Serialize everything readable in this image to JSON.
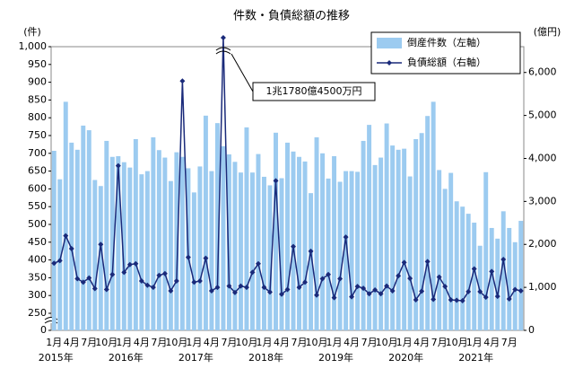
{
  "chart_data": {
    "type": "bar_line",
    "title": "件数・負債総額の推移",
    "ylabel": "(件)",
    "y2label": "(億円)",
    "annotation": "1兆1780億4500万円",
    "axis_break": true,
    "categories": [
      "1月",
      null,
      null,
      "4月",
      null,
      null,
      "7月",
      null,
      null,
      "10月",
      null,
      null,
      "1月",
      null,
      null,
      "4月",
      null,
      null,
      "7月",
      null,
      null,
      "10月",
      null,
      null,
      "1月",
      null,
      null,
      "4月",
      null,
      null,
      "7月",
      null,
      null,
      "10月",
      null,
      null,
      "1月",
      null,
      null,
      "4月",
      null,
      null,
      "7月",
      null,
      null,
      "10月",
      null,
      null,
      "1月",
      null,
      null,
      "4月",
      null,
      null,
      "7月",
      null,
      null,
      "10月",
      null,
      null,
      "1月",
      null,
      null,
      "4月",
      null,
      null,
      "7月",
      null,
      null,
      "10月",
      null,
      null,
      "1月",
      null,
      null,
      "4月",
      null,
      null,
      "7月",
      null,
      null
    ],
    "years": [
      "2015年",
      "2016年",
      "2017年",
      "2018年",
      "2019年",
      "2020年",
      "2021年"
    ],
    "series": [
      {
        "name": "倒産件数（左軸）",
        "color": "#9ccbf0",
        "type": "bar",
        "values": [
          707,
          627,
          845,
          730,
          710,
          778,
          765,
          625,
          608,
          735,
          690,
          692,
          675,
          660,
          740,
          641,
          650,
          745,
          709,
          688,
          622,
          703,
          690,
          658,
          590,
          663,
          806,
          650,
          785,
          720,
          697,
          676,
          646,
          773,
          646,
          698,
          634,
          610,
          758,
          630,
          730,
          705,
          690,
          677,
          588,
          745,
          700,
          629,
          692,
          620,
          650,
          650,
          648,
          735,
          780,
          667,
          688,
          784,
          722,
          710,
          713,
          635,
          740,
          757,
          805,
          845,
          653,
          600,
          645,
          565,
          550,
          530,
          505,
          440,
          647,
          490,
          460,
          537,
          490,
          450,
          510
        ]
      },
      {
        "name": "負債総額（右軸）",
        "color": "#1a2a7a",
        "type": "line",
        "axis": "y2",
        "values": [
          1560,
          1620,
          2200,
          1900,
          1200,
          1120,
          1220,
          970,
          2000,
          950,
          1300,
          3830,
          1350,
          1530,
          1550,
          1150,
          1050,
          1000,
          1280,
          1320,
          920,
          1150,
          5800,
          1700,
          1120,
          1150,
          1680,
          920,
          1000,
          11780.45,
          1030,
          880,
          1030,
          1000,
          1350,
          1550,
          1000,
          890,
          3480,
          840,
          950,
          1950,
          1000,
          1120,
          1840,
          820,
          1200,
          1300,
          760,
          1200,
          2170,
          780,
          1020,
          980,
          850,
          940,
          850,
          1030,
          920,
          1270,
          1580,
          1210,
          710,
          910,
          1600,
          720,
          1240,
          1020,
          710,
          700,
          690,
          900,
          1430,
          900,
          770,
          1370,
          790,
          1650,
          730,
          950,
          920
        ]
      }
    ],
    "ylim": [
      0,
      1000
    ],
    "yticks": [
      0,
      250,
      300,
      350,
      400,
      450,
      500,
      550,
      600,
      650,
      700,
      750,
      800,
      850,
      900,
      950,
      {
        "value": 1000,
        "label": "1,000"
      }
    ],
    "y2lim": [
      0,
      6600
    ],
    "y2ticks": [
      0,
      {
        "value": 1000,
        "label": "1,000"
      },
      {
        "value": 2000,
        "label": "2,000"
      },
      {
        "value": 3000,
        "label": "3,000"
      },
      {
        "value": 4000,
        "label": "4,000"
      },
      {
        "value": 5000,
        "label": "5,000"
      },
      {
        "value": 6000,
        "label": "6,000"
      }
    ],
    "legend": "upper right"
  }
}
